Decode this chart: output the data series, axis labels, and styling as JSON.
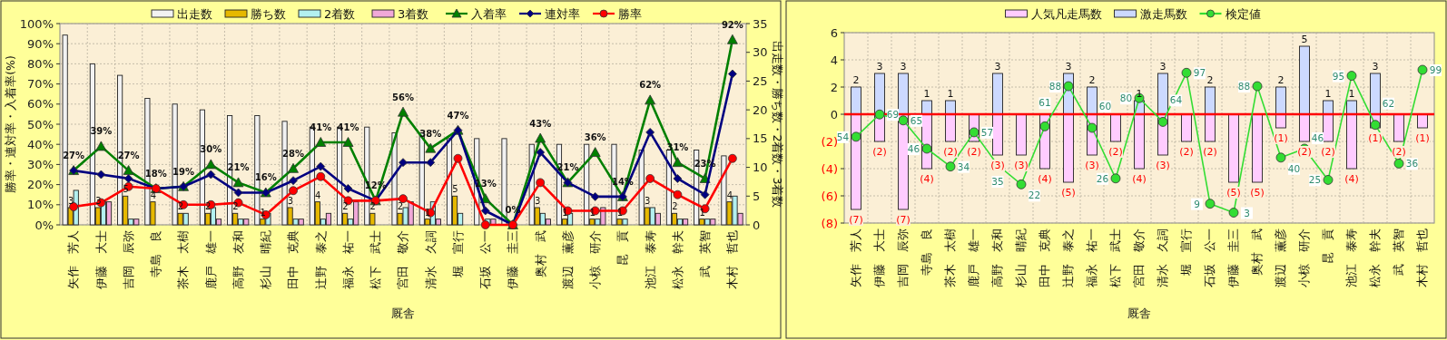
{
  "chart_data": [
    {
      "type": "bar",
      "categories": [
        "矢作　芳人",
        "伊藤　大士",
        "吉岡　辰弥",
        "寺島　良",
        "茶木　太樹",
        "鹿戸　雄一",
        "高野　友和",
        "杉山　晴紀",
        "田中　克典",
        "辻野　泰之",
        "福永　祐一",
        "松下　武士",
        "宮田　敬介",
        "清水　久詞",
        "堀　宣行",
        "石坂　公一",
        "伊藤　圭三",
        "奥村　武",
        "渡辺　薫彦",
        "小椋　研介",
        "昆　貢",
        "池江　泰寿",
        "松永　幹夫",
        "武　英智",
        "木村　哲也"
      ],
      "xlabel": "厩舎",
      "ylabel": "勝率・連対率・入着率(%)",
      "y2label": "出走数・勝ち数・2着数・3着数",
      "ylim": [
        0,
        100
      ],
      "yticks": [
        {
          "value": 0,
          "label": "0%"
        },
        {
          "value": 10,
          "label": "10%"
        },
        {
          "value": 20,
          "label": "20%"
        },
        {
          "value": 30,
          "label": "30%"
        },
        {
          "value": 40,
          "label": "40%"
        },
        {
          "value": 50,
          "label": "50%"
        },
        {
          "value": 60,
          "label": "60%"
        },
        {
          "value": 70,
          "label": "70%"
        },
        {
          "value": 80,
          "label": "80%"
        },
        {
          "value": 90,
          "label": "90%"
        },
        {
          "value": 100,
          "label": "100%"
        }
      ],
      "y2lim": [
        0,
        35
      ],
      "y2ticks": [
        0,
        5,
        10,
        15,
        20,
        25,
        30,
        35
      ],
      "grid": true,
      "legend": "top",
      "series": [
        {
          "name": "出走数",
          "type": "bar",
          "axis": "y2",
          "color": "#f2f2f2",
          "values": [
            33,
            28,
            26,
            22,
            21,
            20,
            19,
            19,
            18,
            17,
            17,
            17,
            16,
            16,
            15,
            15,
            15,
            14,
            14,
            14,
            14,
            13,
            13,
            13,
            12
          ]
        },
        {
          "name": "勝ち数",
          "type": "bar",
          "axis": "y2",
          "color": "#e6b800",
          "values": [
            3,
            3,
            5,
            4,
            2,
            2,
            2,
            1,
            3,
            4,
            2,
            2,
            2,
            1,
            5,
            0,
            0,
            3,
            1,
            1,
            1,
            3,
            2,
            1,
            4
          ],
          "value_labels": [
            "3",
            "3",
            "5",
            "4",
            "2",
            "2",
            "2",
            "1",
            "3",
            "4",
            "2",
            "2",
            "2",
            "1",
            "5",
            null,
            null,
            "3",
            "1",
            "1",
            "1",
            "3",
            "2",
            "1",
            "4"
          ]
        },
        {
          "name": "2着数",
          "type": "bar",
          "axis": "y2",
          "color": "#b3f0f0",
          "values": [
            6,
            4,
            1,
            0,
            2,
            3,
            1,
            2,
            1,
            1,
            1,
            0,
            3,
            4,
            2,
            1,
            0,
            2,
            2,
            1,
            1,
            3,
            1,
            1,
            5
          ]
        },
        {
          "name": "3着数",
          "type": "bar",
          "axis": "y2",
          "color": "#f0a8d8",
          "values": [
            0,
            4,
            1,
            0,
            0,
            1,
            1,
            0,
            1,
            2,
            4,
            0,
            4,
            1,
            0,
            1,
            0,
            1,
            0,
            3,
            0,
            2,
            1,
            1,
            2
          ]
        },
        {
          "name": "入着率",
          "type": "line",
          "marker": "triangle",
          "color": "#008000",
          "values": [
            27,
            39,
            27,
            18,
            19,
            30,
            21,
            16,
            28,
            41,
            41,
            12,
            56,
            38,
            47,
            13,
            0,
            43,
            21,
            36,
            14,
            62,
            31,
            23,
            92
          ],
          "value_labels": [
            "27%",
            "39%",
            "27%",
            "18%",
            "19%",
            "30%",
            "21%",
            "16%",
            "28%",
            "41%",
            "41%",
            "12%",
            "56%",
            "38%",
            "47%",
            "13%",
            "0%",
            "43%",
            "21%",
            "36%",
            "14%",
            "62%",
            "31%",
            "23%",
            "92%"
          ]
        },
        {
          "name": "連対率",
          "type": "line",
          "marker": "diamond",
          "color": "#000080",
          "values": [
            27,
            25,
            23,
            18,
            19,
            25,
            16,
            16,
            22,
            29,
            18,
            12,
            31,
            31,
            47,
            7,
            0,
            36,
            21,
            14,
            14,
            46,
            23,
            15,
            75
          ]
        },
        {
          "name": "勝率",
          "type": "line",
          "marker": "circle",
          "color": "#ff0000",
          "values": [
            9,
            11,
            19,
            18,
            10,
            10,
            11,
            5,
            17,
            24,
            12,
            12,
            13,
            6,
            33,
            0,
            0,
            21,
            7,
            7,
            7,
            23,
            15,
            8,
            33
          ]
        }
      ]
    },
    {
      "type": "bar",
      "categories": [
        "矢作　芳人",
        "伊藤　大士",
        "吉岡　辰弥",
        "寺島　良",
        "茶木　太樹",
        "鹿戸　雄一",
        "高野　友和",
        "杉山　晴紀",
        "田中　克典",
        "辻野　泰之",
        "福永　祐一",
        "松下　武士",
        "宮田　敬介",
        "清水　久詞",
        "堀　宣行",
        "石坂　公一",
        "伊藤　圭三",
        "奥村　武",
        "渡辺　薫彦",
        "小椋　研介",
        "昆　貢",
        "池江　泰寿",
        "松永　幹夫",
        "武　英智",
        "木村　哲也"
      ],
      "xlabel": "厩舎",
      "ylim": [
        -8,
        6
      ],
      "yticks": [
        {
          "value": -8,
          "label": "(8)"
        },
        {
          "value": -6,
          "label": "(6)"
        },
        {
          "value": -4,
          "label": "(4)"
        },
        {
          "value": -2,
          "label": "(2)"
        },
        0,
        2,
        4,
        6
      ],
      "y2lim": [
        -4,
        124
      ],
      "stacked": true,
      "grid": true,
      "legend": "top",
      "ref_lines": [
        {
          "axis": "y",
          "value": 0,
          "color": "#ff0000"
        }
      ],
      "series": [
        {
          "name": "人気凡走馬数",
          "type": "bar",
          "color": "#ffccff",
          "values": [
            -7,
            -2,
            -7,
            -4,
            -2,
            -2,
            -3,
            -3,
            -4,
            -5,
            -3,
            -2,
            -4,
            -3,
            -2,
            -2,
            -5,
            -5,
            -1,
            -2,
            -2,
            -4,
            -1,
            -2,
            -1
          ],
          "value_labels": [
            "(7)",
            "(2)",
            "(7)",
            "(4)",
            "(2)",
            "(2)",
            "(3)",
            "(3)",
            "(4)",
            "(5)",
            "(3)",
            "(2)",
            "(4)",
            "(3)",
            "(2)",
            "(2)",
            "(5)",
            "(5)",
            "(1)",
            "(2)",
            "(2)",
            "(4)",
            "(1)",
            "(2)",
            "(1)"
          ]
        },
        {
          "name": "激走馬数",
          "type": "bar",
          "color": "#ccd9ff",
          "values": [
            2,
            3,
            3,
            1,
            1,
            0,
            3,
            0,
            0,
            3,
            2,
            0,
            1,
            3,
            0,
            2,
            0,
            0,
            2,
            5,
            1,
            1,
            3,
            0,
            0
          ],
          "value_labels": [
            "2",
            "3",
            "3",
            "1",
            "1",
            null,
            "3",
            null,
            null,
            "3",
            "2",
            null,
            "1",
            "3",
            null,
            "2",
            null,
            null,
            "2",
            "5",
            "1",
            "1",
            "3",
            null,
            null
          ]
        },
        {
          "name": "検定値",
          "type": "line",
          "axis": "y2",
          "marker": "circle",
          "color": "#33dd33",
          "values": [
            54,
            69,
            65,
            46,
            34,
            57,
            35,
            22,
            61,
            88,
            60,
            26,
            80,
            64,
            97,
            9,
            3,
            88,
            40,
            46,
            25,
            95,
            62,
            36,
            99
          ],
          "value_labels": [
            "54",
            "69",
            "65",
            "46",
            "34",
            "57",
            "35",
            "22",
            "61",
            "88",
            "60",
            "26",
            "80",
            "64",
            "97",
            "9",
            "3",
            "88",
            "40",
            "46",
            "25",
            "95",
            "62",
            "36",
            "99"
          ]
        }
      ]
    }
  ]
}
